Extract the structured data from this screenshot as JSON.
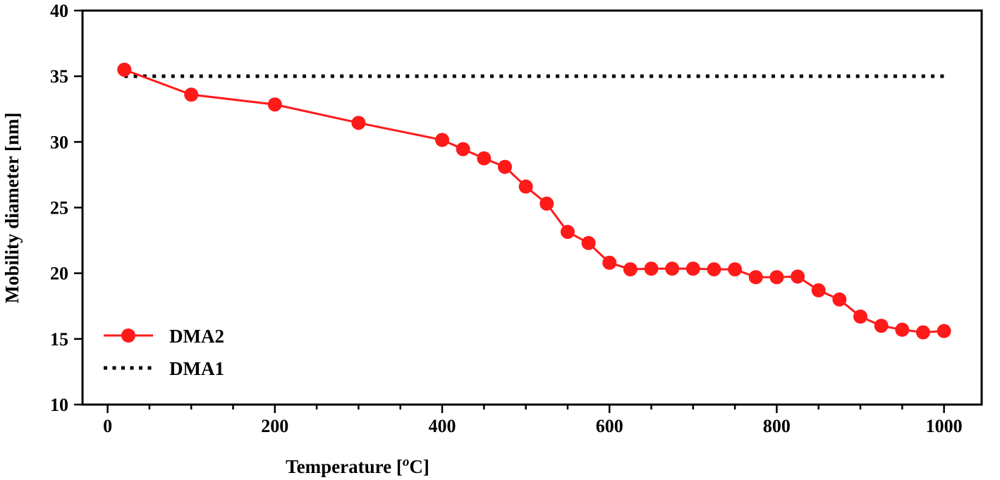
{
  "chart_data": {
    "type": "line",
    "title": "",
    "xlabel": "Temperature [°C]",
    "xlabel_parts": {
      "main": "Temperature [",
      "sup": "o",
      "unit": "C]"
    },
    "ylabel": "Mobility diameter [nm]",
    "xlim": [
      -30,
      1045
    ],
    "ylim": [
      10,
      40
    ],
    "xticks": [
      0,
      200,
      400,
      600,
      800,
      1000
    ],
    "xtick_labels": [
      "0",
      "200",
      "400",
      "600",
      "800",
      "1000"
    ],
    "x_minor_step": 50,
    "yticks": [
      10,
      15,
      20,
      25,
      30,
      35,
      40
    ],
    "ytick_labels": [
      "10",
      "15",
      "20",
      "25",
      "30",
      "35",
      "40"
    ],
    "grid": false,
    "legend_position": "bottom-left",
    "series": [
      {
        "name": "DMA2",
        "color": "#ff1a1a",
        "style": "solid-line-with-circle-markers",
        "x": [
          20,
          100,
          200,
          300,
          400,
          425,
          450,
          475,
          500,
          525,
          550,
          575,
          600,
          625,
          650,
          675,
          700,
          725,
          750,
          775,
          800,
          825,
          850,
          875,
          900,
          925,
          950,
          975,
          1000
        ],
        "y": [
          35.5,
          33.6,
          32.85,
          31.45,
          30.15,
          29.45,
          28.75,
          28.1,
          26.6,
          25.3,
          23.15,
          22.3,
          20.8,
          20.3,
          20.35,
          20.35,
          20.35,
          20.3,
          20.3,
          19.7,
          19.7,
          19.75,
          18.7,
          18.0,
          16.7,
          16.0,
          15.7,
          15.5,
          15.6
        ]
      },
      {
        "name": "DMA1",
        "color": "#000000",
        "style": "dotted-line",
        "x": [
          20,
          1000
        ],
        "y": [
          35,
          35
        ]
      }
    ]
  }
}
